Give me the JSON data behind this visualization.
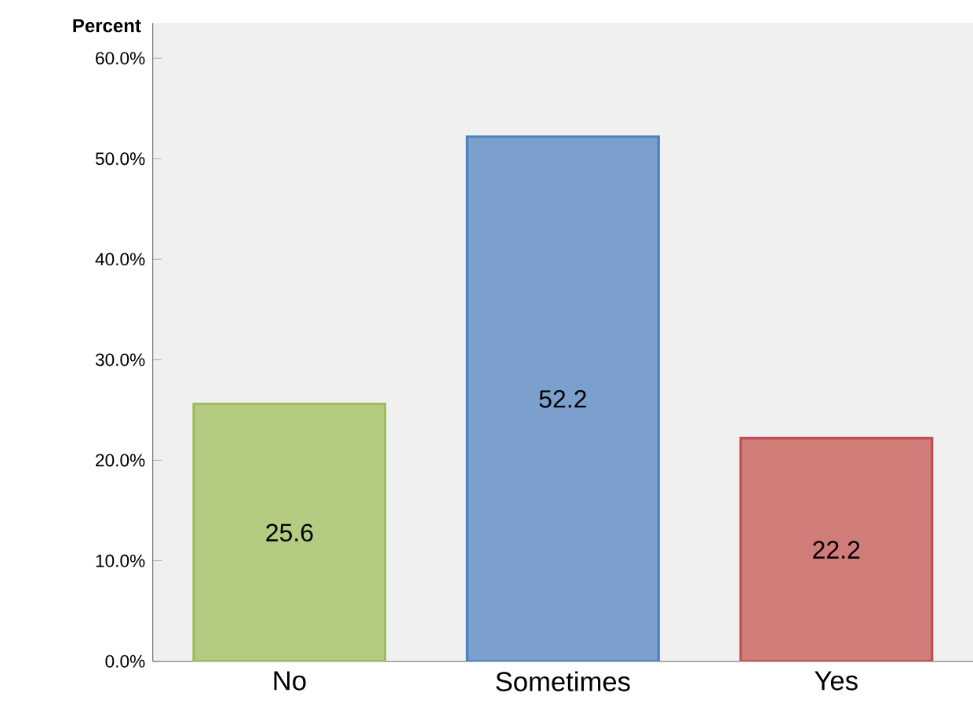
{
  "chart_data": {
    "type": "bar",
    "ylabel": "Percent",
    "categories": [
      "No",
      "Sometimes",
      "Yes"
    ],
    "values": [
      25.6,
      52.2,
      22.2
    ],
    "colors": [
      "#9bbb59",
      "#4f81bd",
      "#c0504d"
    ],
    "ylim": [
      0,
      63.5
    ],
    "yticks": [
      {
        "value": 0,
        "label": "0.0%"
      },
      {
        "value": 10,
        "label": "10.0%"
      },
      {
        "value": 20,
        "label": "20.0%"
      },
      {
        "value": 30,
        "label": "30.0%"
      },
      {
        "value": 40,
        "label": "40.0%"
      },
      {
        "value": 50,
        "label": "50.0%"
      },
      {
        "value": 60,
        "label": "60.0%"
      }
    ],
    "data_labels": true,
    "grid": false
  }
}
